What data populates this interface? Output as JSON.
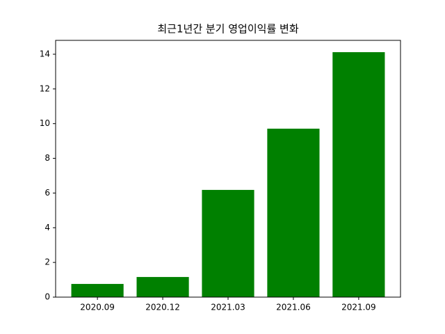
{
  "chart_data": {
    "type": "bar",
    "title": "최근1년간 분기 영업이익률 변화",
    "categories": [
      "2020.09",
      "2020.12",
      "2021.03",
      "2021.06",
      "2021.09"
    ],
    "values": [
      0.76,
      1.16,
      6.18,
      9.71,
      14.12
    ],
    "color": "#008000",
    "ylim": [
      0,
      14.8
    ],
    "yticks": [
      0,
      2,
      4,
      6,
      8,
      10,
      12,
      14
    ],
    "grid": false
  }
}
